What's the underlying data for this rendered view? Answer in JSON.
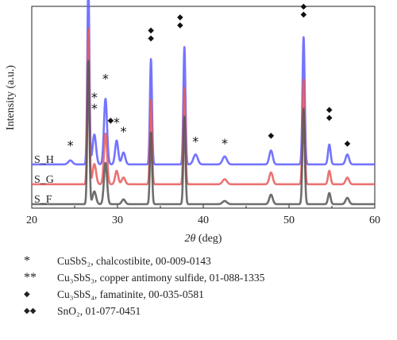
{
  "chart_data": {
    "type": "line",
    "title": "",
    "xlabel": "2θ (deg)",
    "xlabel_parts": {
      "italic": "2θ",
      "rest": " (deg)"
    },
    "ylabel": "Intensity (a.u.)",
    "xlim": [
      20,
      60
    ],
    "x_ticks": [
      "20",
      "30",
      "40",
      "50",
      "60"
    ],
    "grid": false,
    "series": [
      {
        "name": "S_H",
        "color": "#5c5cff",
        "baseline": 0.22,
        "scale": 1.0,
        "peaks": [
          [
            24.5,
            0.02,
            0.25
          ],
          [
            26.6,
            0.92,
            0.12
          ],
          [
            27.3,
            0.15,
            0.2
          ],
          [
            28.6,
            0.33,
            0.18
          ],
          [
            29.9,
            0.12,
            0.18
          ],
          [
            30.7,
            0.06,
            0.2
          ],
          [
            33.9,
            0.53,
            0.12
          ],
          [
            37.8,
            0.59,
            0.12
          ],
          [
            39.1,
            0.05,
            0.25
          ],
          [
            42.5,
            0.04,
            0.25
          ],
          [
            47.9,
            0.07,
            0.2
          ],
          [
            51.7,
            0.64,
            0.13
          ],
          [
            54.7,
            0.1,
            0.15
          ],
          [
            56.8,
            0.05,
            0.2
          ]
        ]
      },
      {
        "name": "S_G",
        "color": "#e65a5a",
        "baseline": 0.12,
        "scale": 0.85,
        "peaks": [
          [
            26.6,
            0.92,
            0.12
          ],
          [
            27.3,
            0.12,
            0.2
          ],
          [
            28.6,
            0.3,
            0.18
          ],
          [
            29.9,
            0.08,
            0.18
          ],
          [
            30.7,
            0.04,
            0.2
          ],
          [
            33.9,
            0.5,
            0.12
          ],
          [
            37.8,
            0.57,
            0.12
          ],
          [
            42.5,
            0.03,
            0.25
          ],
          [
            47.9,
            0.07,
            0.2
          ],
          [
            51.7,
            0.62,
            0.13
          ],
          [
            54.7,
            0.08,
            0.15
          ],
          [
            56.8,
            0.04,
            0.2
          ]
        ]
      },
      {
        "name": "S_F",
        "color": "#555555",
        "baseline": 0.02,
        "scale": 0.8,
        "peaks": [
          [
            26.6,
            0.9,
            0.12
          ],
          [
            27.3,
            0.08,
            0.2
          ],
          [
            28.6,
            0.26,
            0.18
          ],
          [
            30.7,
            0.03,
            0.2
          ],
          [
            33.9,
            0.45,
            0.12
          ],
          [
            37.8,
            0.55,
            0.12
          ],
          [
            42.5,
            0.02,
            0.25
          ],
          [
            47.9,
            0.06,
            0.2
          ],
          [
            51.7,
            0.6,
            0.13
          ],
          [
            54.7,
            0.07,
            0.15
          ],
          [
            56.8,
            0.04,
            0.2
          ]
        ]
      }
    ],
    "annotations": [
      {
        "x": 26.6,
        "y": 1.085,
        "symbol": "◆",
        "stack": 2
      },
      {
        "x": 24.5,
        "y": 0.33,
        "symbol": "*",
        "stack": 1
      },
      {
        "x": 28.6,
        "y": 0.665,
        "symbol": "*",
        "stack": 1
      },
      {
        "x": 27.3,
        "y": 0.515,
        "symbol": "*",
        "stack": 2
      },
      {
        "x": 29.2,
        "y": 0.445,
        "symbol": "◆",
        "stack": 1
      },
      {
        "x": 29.9,
        "y": 0.445,
        "symbol": "*",
        "stack": 1
      },
      {
        "x": 30.7,
        "y": 0.4,
        "symbol": "*",
        "stack": 1
      },
      {
        "x": 33.9,
        "y": 0.86,
        "symbol": "◆",
        "stack": 2
      },
      {
        "x": 37.3,
        "y": 0.925,
        "symbol": "◆",
        "stack": 2
      },
      {
        "x": 39.1,
        "y": 0.35,
        "symbol": "*",
        "stack": 1
      },
      {
        "x": 42.5,
        "y": 0.34,
        "symbol": "*",
        "stack": 1
      },
      {
        "x": 47.9,
        "y": 0.37,
        "symbol": "◆",
        "stack": 1
      },
      {
        "x": 51.7,
        "y": 0.98,
        "symbol": "◆",
        "stack": 2
      },
      {
        "x": 54.7,
        "y": 0.46,
        "symbol": "◆",
        "stack": 2
      },
      {
        "x": 56.8,
        "y": 0.33,
        "symbol": "◆",
        "stack": 1
      }
    ]
  },
  "legend": [
    {
      "symbol": "*",
      "text": "CuSbS₂, chalcostibite, 00-009-0143"
    },
    {
      "symbol": "**",
      "text": "Cu₃SbS₃, copper antimony sulfide, 01-088-1335"
    },
    {
      "symbol": "◆",
      "text": "Cu₃SbS₄, famatinite, 00-035-0581"
    },
    {
      "symbol": "◆◆",
      "text": "SnO₂, 01-077-0451"
    }
  ]
}
